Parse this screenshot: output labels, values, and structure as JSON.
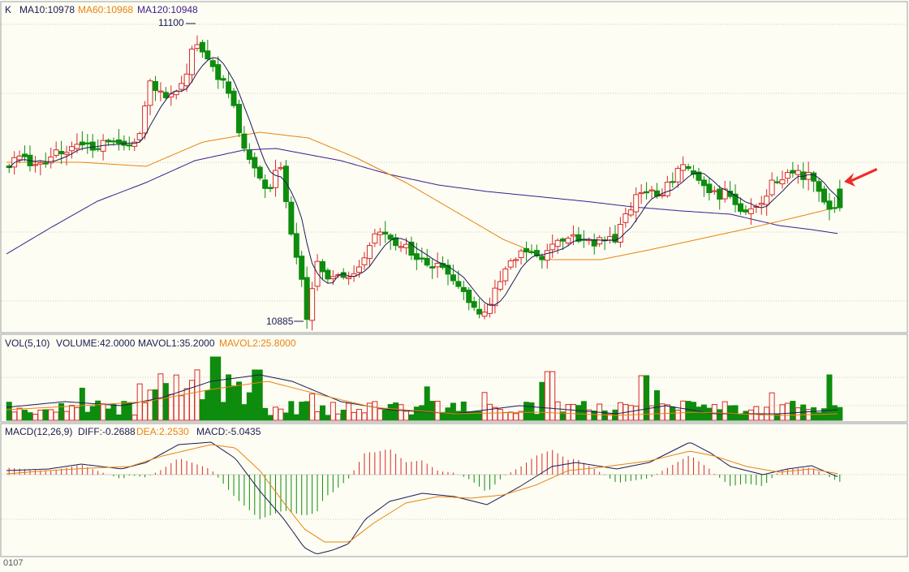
{
  "colors": {
    "background": "#fdfdf3",
    "grid": "#c9cfc3",
    "border": "#9aa0a6",
    "up": "#d62b2b",
    "down": "#0e8c0e",
    "ma10": "#1b1b55",
    "ma60": "#e98310",
    "ma120": "#3d1d8f",
    "text": "#1b1b55",
    "arrow": "#ef2b2b"
  },
  "main_panel": {
    "tag": "K",
    "ma10_label": "MA10:10978",
    "ma60_label": "MA60:10968",
    "ma120_label": "MA120:10948",
    "high_label": "11100",
    "low_label": "10885",
    "arrow_icon": "red-arrow-icon"
  },
  "volume_panel": {
    "label": "VOL(5,10)",
    "volume_label": "VOLUME:42.0000",
    "mavol1_label": "MAVOL1:35.2000",
    "mavol2_label": "MAVOL2:25.8000"
  },
  "macd_panel": {
    "label": "MACD(12,26,9)",
    "diff_label": "DIFF:-0.2688",
    "dea_label": "DEA:2.2530",
    "macd_label": "MACD:-5.0435"
  },
  "footer": {
    "date_label": "0107"
  },
  "chart_data": {
    "type": "candlestick",
    "price_range": [
      10885,
      11100
    ],
    "extremes": {
      "high": 11100,
      "low": 10885
    },
    "ma_last": {
      "MA10": 10978,
      "MA60": 10968,
      "MA120": 10948
    },
    "volume_last": {
      "VOLUME": 42.0,
      "MAVOL1": 35.2,
      "MAVOL2": 25.8
    },
    "macd_last": {
      "DIFF": -0.2688,
      "DEA": 2.253,
      "MACD": -5.0435
    },
    "grid": true
  }
}
